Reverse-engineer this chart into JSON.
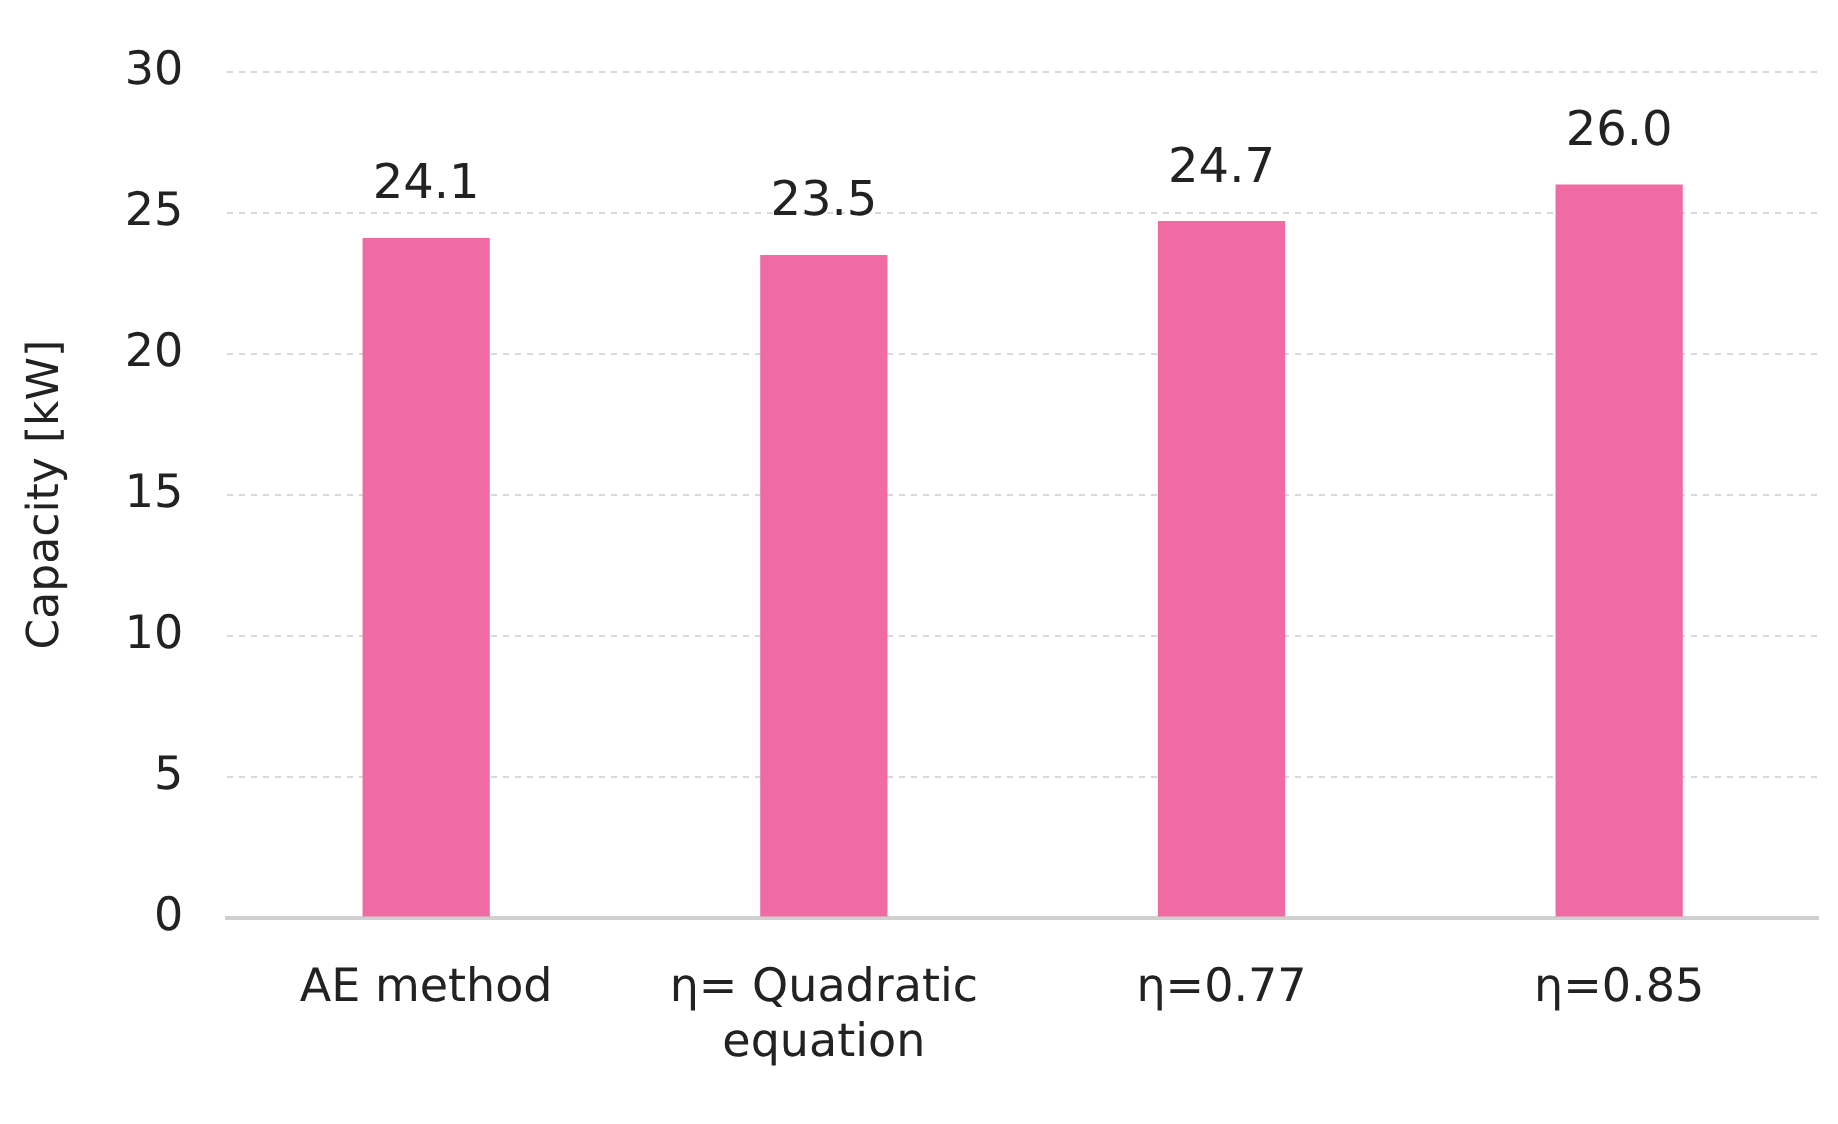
{
  "chart_data": {
    "type": "bar",
    "ylabel": "Capacity [kW]",
    "categories": [
      "AE method",
      "η= Quadratic equation",
      "η=0.77",
      "η=0.85"
    ],
    "values": [
      24.1,
      23.5,
      24.7,
      26.0
    ],
    "value_labels": [
      "24.1",
      "23.5",
      "24.7",
      "26.0"
    ],
    "color": "#f06ba4",
    "ylim": [
      0,
      30
    ],
    "yticks": [
      0,
      5,
      10,
      15,
      20,
      25,
      30
    ],
    "grid": "y",
    "legend": false
  }
}
